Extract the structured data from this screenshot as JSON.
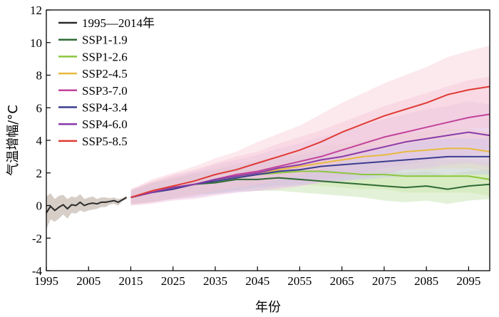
{
  "chart_data": {
    "type": "line",
    "xlabel": "年份",
    "ylabel": "气温增幅/°C",
    "xlim": [
      1995,
      2100
    ],
    "ylim": [
      -4,
      12
    ],
    "x_ticks": [
      1995,
      2005,
      2015,
      2025,
      2035,
      2045,
      2055,
      2065,
      2075,
      2085,
      2095
    ],
    "y_ticks": [
      -4,
      -2,
      0,
      2,
      4,
      6,
      8,
      10,
      12
    ],
    "grid": false,
    "legend_position": "top-left",
    "series": [
      {
        "name": "1995—2014年",
        "color": "#2b2b2b",
        "band_color": "#c8beb4",
        "x": [
          1995,
          1996,
          1997,
          1998,
          1999,
          2000,
          2001,
          2002,
          2003,
          2004,
          2005,
          2006,
          2007,
          2008,
          2009,
          2010,
          2011,
          2012,
          2013,
          2014
        ],
        "values": [
          -0.45,
          -0.05,
          -0.3,
          -0.1,
          0.05,
          -0.2,
          0.05,
          0.0,
          0.2,
          0.0,
          0.1,
          0.15,
          0.1,
          0.2,
          0.2,
          0.25,
          0.3,
          0.2,
          0.35,
          0.5
        ],
        "band": [
          1.0,
          0.8,
          0.7,
          0.7,
          0.6,
          0.6,
          0.5,
          0.5,
          0.5,
          0.4,
          0.4,
          0.4,
          0.3,
          0.3,
          0.3,
          0.2,
          0.2,
          0.2,
          0.1,
          0.1
        ]
      },
      {
        "name": "SSP1-1.9",
        "color": "#2e6b34",
        "band_color": "#b8dca0",
        "x": [
          2015,
          2020,
          2025,
          2030,
          2035,
          2040,
          2045,
          2050,
          2055,
          2060,
          2065,
          2070,
          2075,
          2080,
          2085,
          2090,
          2095,
          2100
        ],
        "values": [
          0.5,
          0.8,
          1.1,
          1.3,
          1.4,
          1.6,
          1.6,
          1.7,
          1.6,
          1.5,
          1.4,
          1.3,
          1.2,
          1.1,
          1.2,
          1.0,
          1.2,
          1.3
        ],
        "band": [
          0.4,
          0.6,
          0.6,
          0.6,
          0.7,
          0.7,
          0.7,
          0.8,
          0.8,
          0.8,
          0.8,
          0.8,
          0.9,
          0.9,
          0.9,
          0.9,
          0.9,
          0.9
        ]
      },
      {
        "name": "SSP1-2.6",
        "color": "#8cc63f",
        "band_color": "#c8e6a0",
        "x": [
          2015,
          2020,
          2025,
          2030,
          2035,
          2040,
          2045,
          2050,
          2055,
          2060,
          2065,
          2070,
          2075,
          2080,
          2085,
          2090,
          2095,
          2100
        ],
        "values": [
          0.5,
          0.8,
          1.1,
          1.3,
          1.5,
          1.7,
          1.9,
          2.0,
          2.1,
          2.1,
          2.0,
          1.9,
          1.9,
          1.8,
          1.8,
          1.8,
          1.8,
          1.6
        ],
        "band": [
          0.4,
          0.6,
          0.6,
          0.6,
          0.7,
          0.7,
          0.8,
          0.8,
          0.8,
          0.9,
          0.9,
          0.9,
          0.9,
          1.0,
          1.0,
          1.0,
          1.0,
          1.0
        ]
      },
      {
        "name": "SSP2-4.5",
        "color": "#e8b940",
        "band_color": "#f4dca0",
        "x": [
          2015,
          2020,
          2025,
          2030,
          2035,
          2040,
          2045,
          2050,
          2055,
          2060,
          2065,
          2070,
          2075,
          2080,
          2085,
          2090,
          2095,
          2100
        ],
        "values": [
          0.5,
          0.8,
          1.1,
          1.3,
          1.6,
          1.8,
          2.0,
          2.2,
          2.4,
          2.6,
          2.8,
          3.0,
          3.1,
          3.3,
          3.4,
          3.5,
          3.5,
          3.3
        ],
        "band": [
          0.4,
          0.6,
          0.6,
          0.7,
          0.7,
          0.8,
          0.8,
          0.9,
          0.9,
          1.0,
          1.0,
          1.0,
          1.1,
          1.1,
          1.2,
          1.2,
          1.2,
          1.2
        ]
      },
      {
        "name": "SSP3-7.0",
        "color": "#c2429a",
        "band_color": "#f2bcd6",
        "x": [
          2015,
          2020,
          2025,
          2030,
          2035,
          2040,
          2045,
          2050,
          2055,
          2060,
          2065,
          2070,
          2075,
          2080,
          2085,
          2090,
          2095,
          2100
        ],
        "values": [
          0.5,
          0.8,
          1.1,
          1.3,
          1.6,
          1.9,
          2.1,
          2.4,
          2.7,
          3.0,
          3.4,
          3.8,
          4.2,
          4.5,
          4.8,
          5.1,
          5.4,
          5.6
        ],
        "band": [
          0.5,
          0.7,
          0.8,
          0.9,
          1.0,
          1.1,
          1.2,
          1.4,
          1.5,
          1.6,
          1.7,
          1.8,
          1.9,
          2.0,
          2.1,
          2.2,
          2.3,
          2.3
        ]
      },
      {
        "name": "SSP4-3.4",
        "color": "#3b3e8f",
        "band_color": "#c8c6ea",
        "x": [
          2015,
          2020,
          2025,
          2030,
          2035,
          2040,
          2045,
          2050,
          2055,
          2060,
          2065,
          2070,
          2075,
          2080,
          2085,
          2090,
          2095,
          2100
        ],
        "values": [
          0.5,
          0.8,
          1.0,
          1.3,
          1.5,
          1.7,
          1.9,
          2.1,
          2.2,
          2.4,
          2.5,
          2.6,
          2.7,
          2.8,
          2.9,
          3.0,
          3.0,
          3.0
        ],
        "band": [
          0.4,
          0.6,
          0.6,
          0.7,
          0.7,
          0.8,
          0.8,
          0.9,
          0.9,
          0.9,
          1.0,
          1.0,
          1.0,
          1.0,
          1.1,
          1.1,
          1.1,
          1.1
        ]
      },
      {
        "name": "SSP4-6.0",
        "color": "#8a3aa8",
        "band_color": "#dcc0ea",
        "x": [
          2015,
          2020,
          2025,
          2030,
          2035,
          2040,
          2045,
          2050,
          2055,
          2060,
          2065,
          2070,
          2075,
          2080,
          2085,
          2090,
          2095,
          2100
        ],
        "values": [
          0.5,
          0.8,
          1.1,
          1.3,
          1.6,
          1.8,
          2.0,
          2.3,
          2.5,
          2.8,
          3.0,
          3.3,
          3.6,
          3.9,
          4.1,
          4.3,
          4.5,
          4.3
        ],
        "band": [
          0.4,
          0.6,
          0.7,
          0.8,
          0.9,
          1.0,
          1.1,
          1.2,
          1.3,
          1.4,
          1.5,
          1.6,
          1.7,
          1.7,
          1.8,
          1.8,
          1.9,
          1.9
        ]
      },
      {
        "name": "SSP5-8.5",
        "color": "#e03a35",
        "band_color": "#f8c8d2",
        "x": [
          2015,
          2020,
          2025,
          2030,
          2035,
          2040,
          2045,
          2050,
          2055,
          2060,
          2065,
          2070,
          2075,
          2080,
          2085,
          2090,
          2095,
          2100
        ],
        "values": [
          0.5,
          0.9,
          1.2,
          1.5,
          1.9,
          2.2,
          2.6,
          3.0,
          3.4,
          3.9,
          4.5,
          5.0,
          5.5,
          5.9,
          6.3,
          6.8,
          7.1,
          7.3
        ],
        "band": [
          0.5,
          0.7,
          0.8,
          0.9,
          1.0,
          1.1,
          1.3,
          1.4,
          1.5,
          1.7,
          1.8,
          1.9,
          2.0,
          2.1,
          2.2,
          2.3,
          2.4,
          2.5
        ]
      }
    ]
  }
}
